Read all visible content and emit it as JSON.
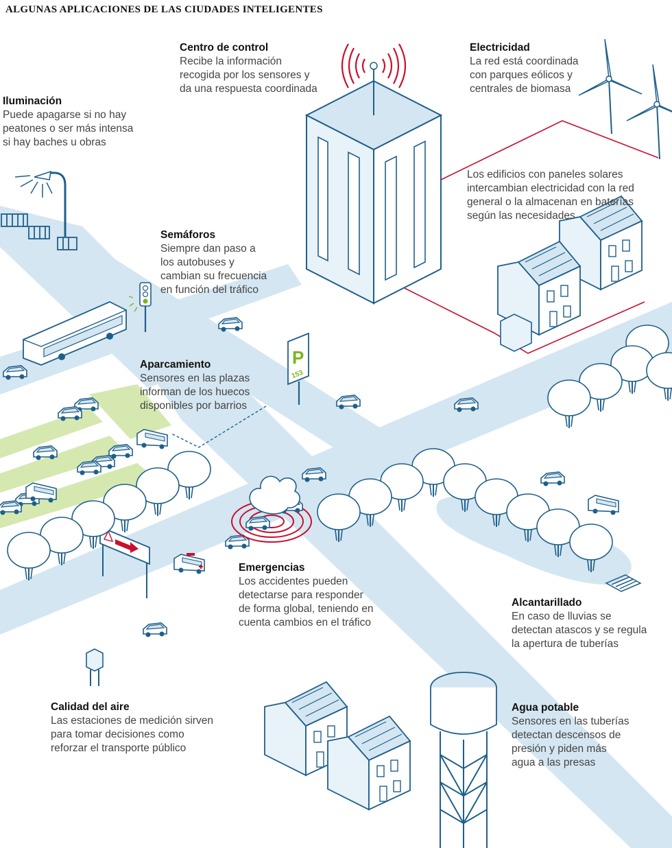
{
  "title": "ALGUNAS APLICACIONES DE LAS CIUDADES INTELIGENTES",
  "parking_sign": {
    "letter": "P",
    "number": "153"
  },
  "colors": {
    "road": "#d4e6f1",
    "outline": "#1f5f8b",
    "building_fill": "#e8f2f9",
    "power_line": "#c8102e",
    "parking_green": "#d5e8b0",
    "accent_green": "#7ab51d",
    "alert_red": "#c8102e"
  },
  "labels": {
    "control": {
      "title": "Centro de control",
      "body": "Recibe la información\nrecogida por los sensores y\nda una respuesta coordinada"
    },
    "electricity": {
      "title": "Electricidad",
      "body": "La red está coordinada\ncon parques eólicos y\ncentrales de biomasa"
    },
    "solar": {
      "body": "Los edificios con paneles solares\nintercambian electricidad con la red\ngeneral o la almacenan en baterías\nsegún las necesidades"
    },
    "lighting": {
      "title": "Iluminación",
      "body": "Puede apagarse si no hay\npeatones o ser más intensa\nsi hay baches u obras"
    },
    "traffic_lights": {
      "title": "Semáforos",
      "body": "Siempre dan paso a\nlos autobuses y\ncambian su frecuencia\nen función del tráfico"
    },
    "parking": {
      "title": "Aparcamiento",
      "body": "Sensores en las plazas\ninforman de los huecos\ndisponibles por barrios"
    },
    "emergencies": {
      "title": "Emergencias",
      "body": "Los accidentes pueden\ndetectarse para responder\nde forma global, teniendo en\ncuenta cambios en el tráfico"
    },
    "sewerage": {
      "title": "Alcantarillado",
      "body": "En caso de lluvias se\ndetectan atascos y se regula\nla apertura de tuberías"
    },
    "air_quality": {
      "title": "Calidad del aire",
      "body": "Las estaciones de medición sirven\npara tomar decisiones como\nreforzar el transporte público"
    },
    "drinking_water": {
      "title": "Agua potable",
      "body": "Sensores en las tuberías\ndetectan descensos de\npresión y piden más\nagua a las presas"
    }
  }
}
